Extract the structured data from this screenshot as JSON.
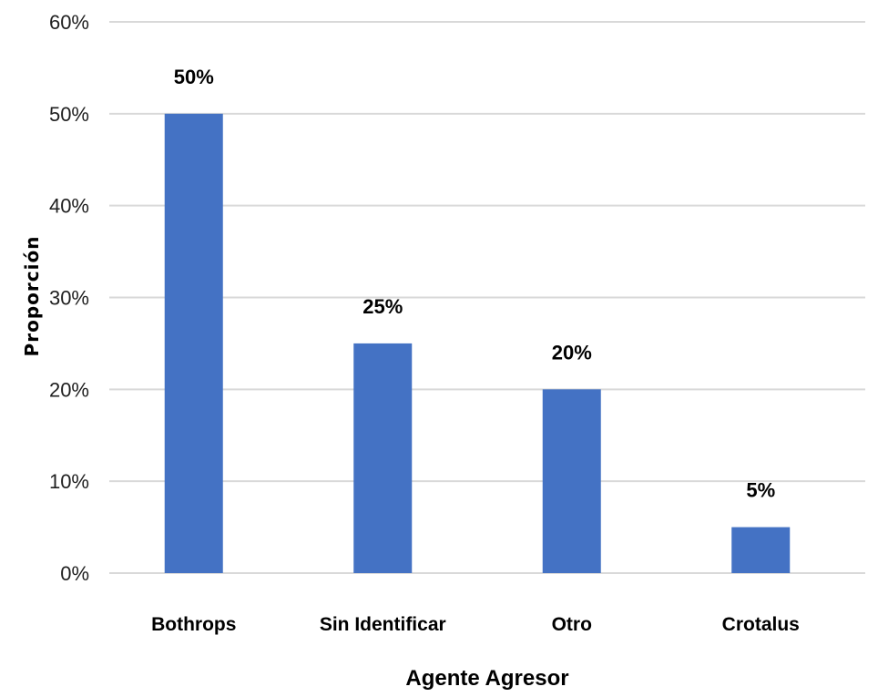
{
  "chart_data": {
    "type": "bar",
    "title": "",
    "xlabel": "Agente Agresor",
    "ylabel": "Proporción",
    "categories": [
      "Bothrops",
      "Sin Identificar",
      "Otro",
      "Crotalus"
    ],
    "values": [
      50,
      25,
      20,
      5
    ],
    "value_labels": [
      "50%",
      "25%",
      "20%",
      "5%"
    ],
    "ylim": [
      0,
      60
    ],
    "yticks": [
      0,
      10,
      20,
      30,
      40,
      50,
      60
    ],
    "ytick_labels": [
      "0%",
      "10%",
      "20%",
      "30%",
      "40%",
      "50%",
      "60%"
    ],
    "grid": true,
    "legend": "none",
    "bar_color": "#4472C4",
    "grid_color": "#d9d9d9"
  }
}
